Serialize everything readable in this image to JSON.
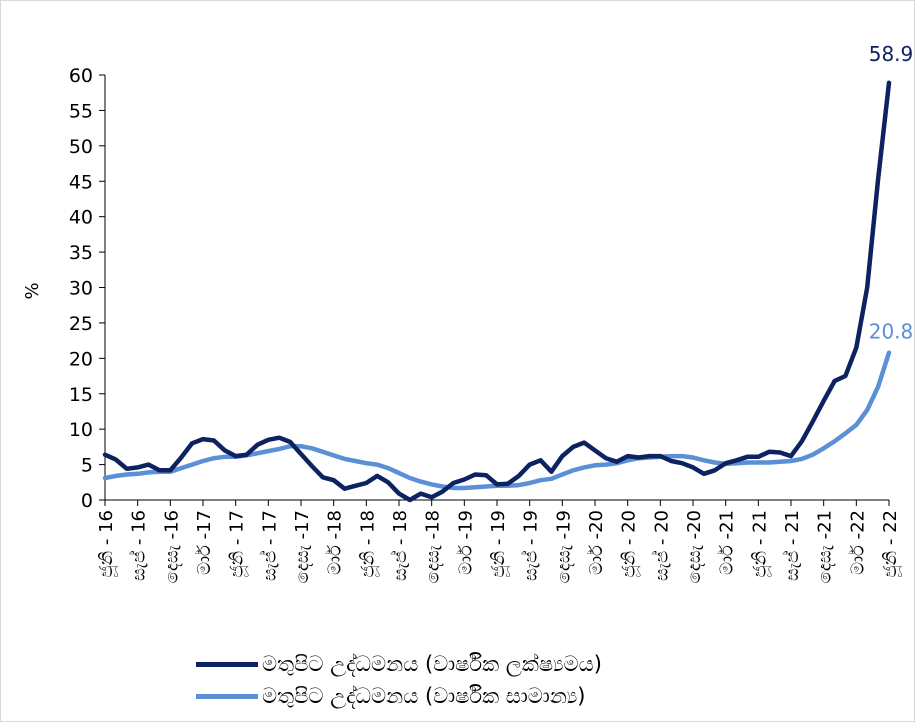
{
  "chart_data": {
    "type": "line",
    "ylabel": "%",
    "ylim": [
      0,
      60
    ],
    "yticks": [
      0,
      5,
      10,
      15,
      20,
      25,
      30,
      35,
      40,
      45,
      50,
      55,
      60
    ],
    "x_tick_labels": [
      "ජූනි - 16",
      "සැප් - 16",
      "දෙසැ -16",
      "මාර් -17",
      "ජූනි - 17",
      "සැප් - 17",
      "දෙසැ -17",
      "මාර් -18",
      "ජූනි - 18",
      "සැප් - 18",
      "දෙසැ -18",
      "මාර් -19",
      "ජූනි - 19",
      "සැප් - 19",
      "දෙසැ -19",
      "මාර් -20",
      "ජූනි - 20",
      "සැප් - 20",
      "දෙසැ -20",
      "මාර් -21",
      "ජූනි - 21",
      "සැප් - 21",
      "දෙසැ -21",
      "මාර් -22",
      "ජූනි - 22"
    ],
    "series": [
      {
        "name": "මතුපිට උද්ධමනය (වාර්ෂික ලක්ෂ්‍යමය)",
        "color": "#0d2260",
        "end_label": "58.9",
        "values": [
          6.4,
          5.7,
          4.4,
          4.6,
          5.0,
          4.2,
          4.2,
          6.0,
          8.0,
          8.6,
          8.4,
          7.0,
          6.2,
          6.4,
          7.8,
          8.5,
          8.8,
          8.2,
          6.5,
          4.8,
          3.2,
          2.8,
          1.6,
          2.0,
          2.4,
          3.4,
          2.5,
          0.9,
          0.0,
          0.9,
          0.4,
          1.2,
          2.4,
          2.9,
          3.6,
          3.5,
          2.2,
          2.3,
          3.4,
          5.0,
          5.6,
          4.0,
          6.2,
          7.5,
          8.1,
          7.0,
          5.9,
          5.4,
          6.2,
          6.0,
          6.2,
          6.2,
          5.5,
          5.2,
          4.6,
          3.7,
          4.2,
          5.2,
          5.6,
          6.1,
          6.1,
          6.8,
          6.7,
          6.2,
          8.3,
          11.1,
          14.0,
          16.8,
          17.5,
          21.5,
          30.0,
          45.3,
          58.9
        ]
      },
      {
        "name": "මතුපිට උද්ධමනය (වාර්ෂික සාමාන්‍ය)",
        "color": "#5b8fd6",
        "end_label": "20.8",
        "values": [
          3.1,
          3.4,
          3.6,
          3.7,
          3.9,
          4.0,
          4.0,
          4.5,
          5.0,
          5.5,
          5.9,
          6.1,
          6.1,
          6.3,
          6.6,
          6.9,
          7.2,
          7.6,
          7.6,
          7.3,
          6.8,
          6.3,
          5.8,
          5.5,
          5.2,
          5.0,
          4.5,
          3.8,
          3.1,
          2.6,
          2.2,
          1.9,
          1.7,
          1.7,
          1.8,
          1.9,
          2.0,
          2.0,
          2.1,
          2.4,
          2.8,
          3.0,
          3.6,
          4.2,
          4.6,
          4.9,
          5.0,
          5.2,
          5.6,
          5.9,
          6.0,
          6.1,
          6.2,
          6.2,
          6.0,
          5.6,
          5.3,
          5.1,
          5.2,
          5.3,
          5.3,
          5.3,
          5.4,
          5.5,
          5.8,
          6.4,
          7.3,
          8.3,
          9.4,
          10.6,
          12.7,
          16.0,
          20.8
        ]
      }
    ],
    "legend_position": "bottom",
    "grid": false
  }
}
